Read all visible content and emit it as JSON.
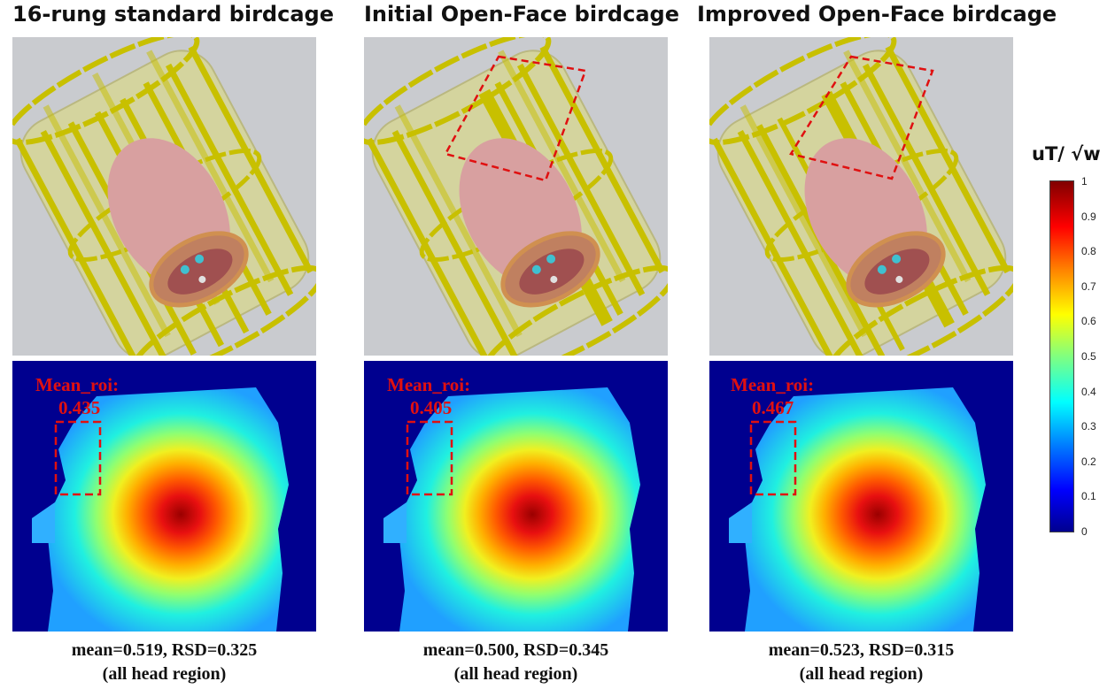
{
  "panels": [
    {
      "title": "16-rung standard birdcage",
      "roi_label": "Mean_roi:",
      "roi_value": "0.435",
      "stat_line1": "mean=0.519, RSD=0.325",
      "stat_line2": "(all head region)"
    },
    {
      "title": "Initial Open-Face birdcage",
      "roi_label": "Mean_roi:",
      "roi_value": "0.405",
      "stat_line1": "mean=0.500, RSD=0.345",
      "stat_line2": "(all head region)"
    },
    {
      "title": "Improved Open-Face birdcage",
      "roi_label": "Mean_roi:",
      "roi_value": "0.467",
      "stat_line1": "mean=0.523, RSD=0.315",
      "stat_line2": "(all head region)"
    }
  ],
  "colorbar": {
    "unit_label": "uT/ √w",
    "ticks": [
      "1",
      "0.9",
      "0.8",
      "0.7",
      "0.6",
      "0.5",
      "0.4",
      "0.3",
      "0.2",
      "0.1",
      "0"
    ]
  },
  "colors": {
    "coil_yellow": "#c8c000",
    "cylinder": "#d9d98a",
    "head": "#d8a0a0",
    "roi_dash": "#e01010",
    "background_map": "#00008f"
  }
}
